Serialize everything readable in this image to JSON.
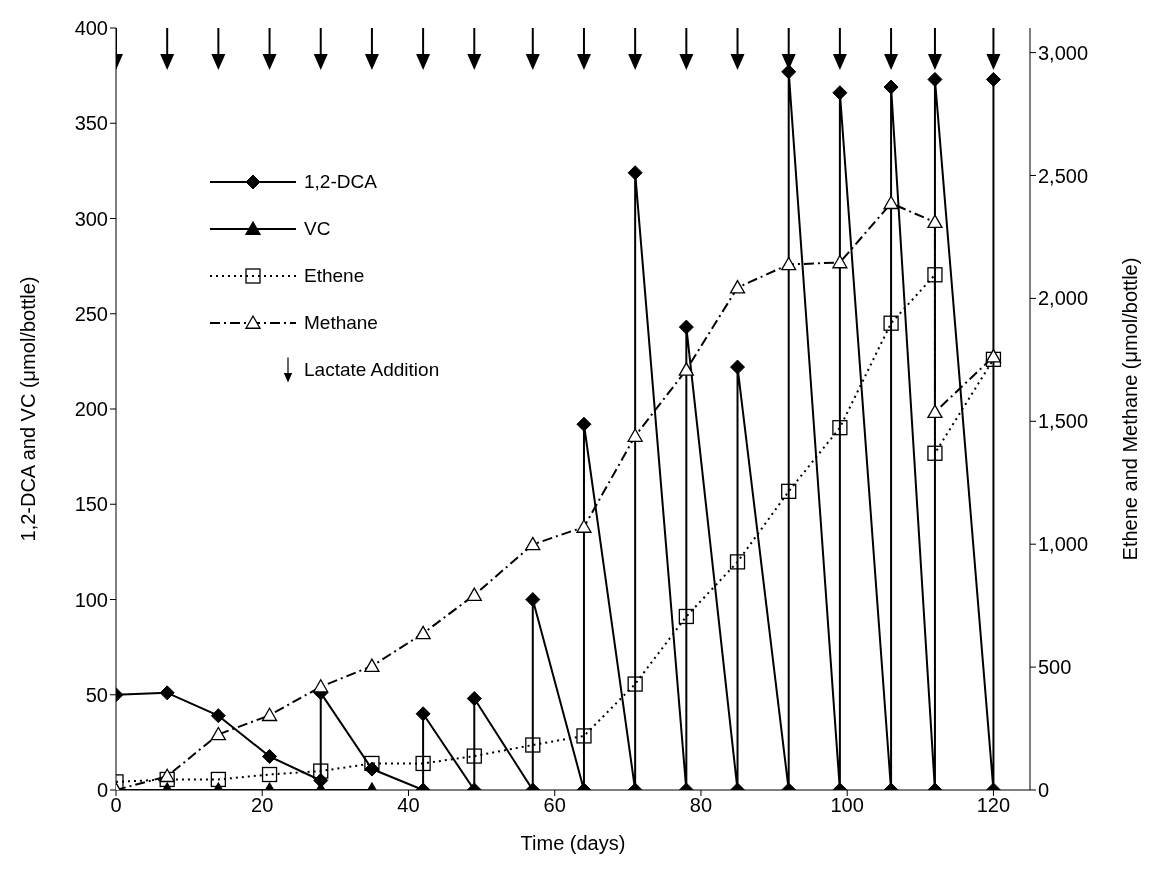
{
  "chart_data": {
    "type": "line",
    "xlabel": "Time (days)",
    "ylabel": "1,2-DCA and VC (μmol/bottle)",
    "y2label": "Ethene and Methane (μmol/bottle)",
    "xlim": [
      0,
      125
    ],
    "xticks": [
      0,
      20,
      40,
      60,
      80,
      100,
      120
    ],
    "ylim": [
      0,
      400
    ],
    "yticks": [
      0,
      50,
      100,
      150,
      200,
      250,
      300,
      350,
      400
    ],
    "y2lim": [
      0,
      3100
    ],
    "y2ticks": [
      0,
      500,
      {
        "value": 1000,
        "label": "1,000"
      },
      {
        "value": 1500,
        "label": "1,500"
      },
      {
        "value": 2000,
        "label": "2,000"
      },
      {
        "value": 2500,
        "label": "2,500"
      },
      {
        "value": 3000,
        "label": "3,000"
      }
    ],
    "grid": false,
    "legend": "top left",
    "series": [
      {
        "name": "1,2-DCA",
        "color": "#000000",
        "marker": "diamond",
        "line_style": "solid",
        "x": [
          0,
          7,
          14,
          21,
          28,
          28,
          35,
          42,
          42,
          49,
          49,
          57,
          57,
          64,
          64,
          71,
          71,
          78,
          78,
          85,
          85,
          92,
          92,
          99,
          99,
          106,
          106,
          112,
          112,
          120,
          120
        ],
        "values": [
          50,
          51,
          39,
          17.6,
          5,
          51,
          11,
          0,
          40,
          0,
          48,
          0,
          100,
          0,
          192,
          0,
          324,
          0,
          243,
          0,
          222,
          0,
          377,
          0,
          366,
          0,
          369,
          0,
          373,
          0,
          373
        ]
      },
      {
        "name": "VC",
        "color": "#000000",
        "marker": "triangle",
        "line_style": "solid",
        "x": [
          0,
          7,
          14,
          21,
          28,
          35
        ],
        "values": [
          0,
          0,
          0,
          0,
          0,
          0
        ]
      },
      {
        "name": "Ethene",
        "axis": "y2",
        "color": "#000000",
        "marker": "square",
        "line_style": "dotted",
        "x": [
          0,
          7,
          14,
          21,
          28,
          35,
          42,
          49,
          57,
          64,
          71,
          78,
          85,
          92,
          99,
          106,
          112,
          112,
          120
        ],
        "values": [
          33,
          43,
          43,
          63,
          77,
          108,
          108,
          138,
          183,
          220,
          431,
          706,
          928,
          1215,
          1474,
          1899,
          2096,
          1370,
          1752
        ]
      },
      {
        "name": "Methane",
        "axis": "y2",
        "color": "#000000",
        "marker": "triangle",
        "line_style": "dashed",
        "x": [
          0,
          7,
          14,
          21,
          28,
          35,
          42,
          49,
          57,
          64,
          71,
          78,
          85,
          92,
          99,
          106,
          112,
          112,
          120
        ],
        "values": [
          0,
          56,
          226,
          304,
          420,
          504,
          637,
          793,
          999,
          1070,
          1440,
          1709,
          2044,
          2138,
          2146,
          2387,
          2310,
          1537,
          1763
        ]
      },
      {
        "name": "Lactate Addition",
        "type": "scatter",
        "color": "#000000",
        "x": [
          0,
          7,
          14,
          21,
          28,
          35,
          42,
          49,
          57,
          64,
          71,
          78,
          85,
          92,
          99,
          106,
          112,
          120
        ],
        "values": [
          389,
          389,
          389,
          389,
          389,
          389,
          389,
          389,
          389,
          389,
          389,
          389,
          389,
          389,
          389,
          389,
          389,
          389
        ]
      }
    ]
  }
}
